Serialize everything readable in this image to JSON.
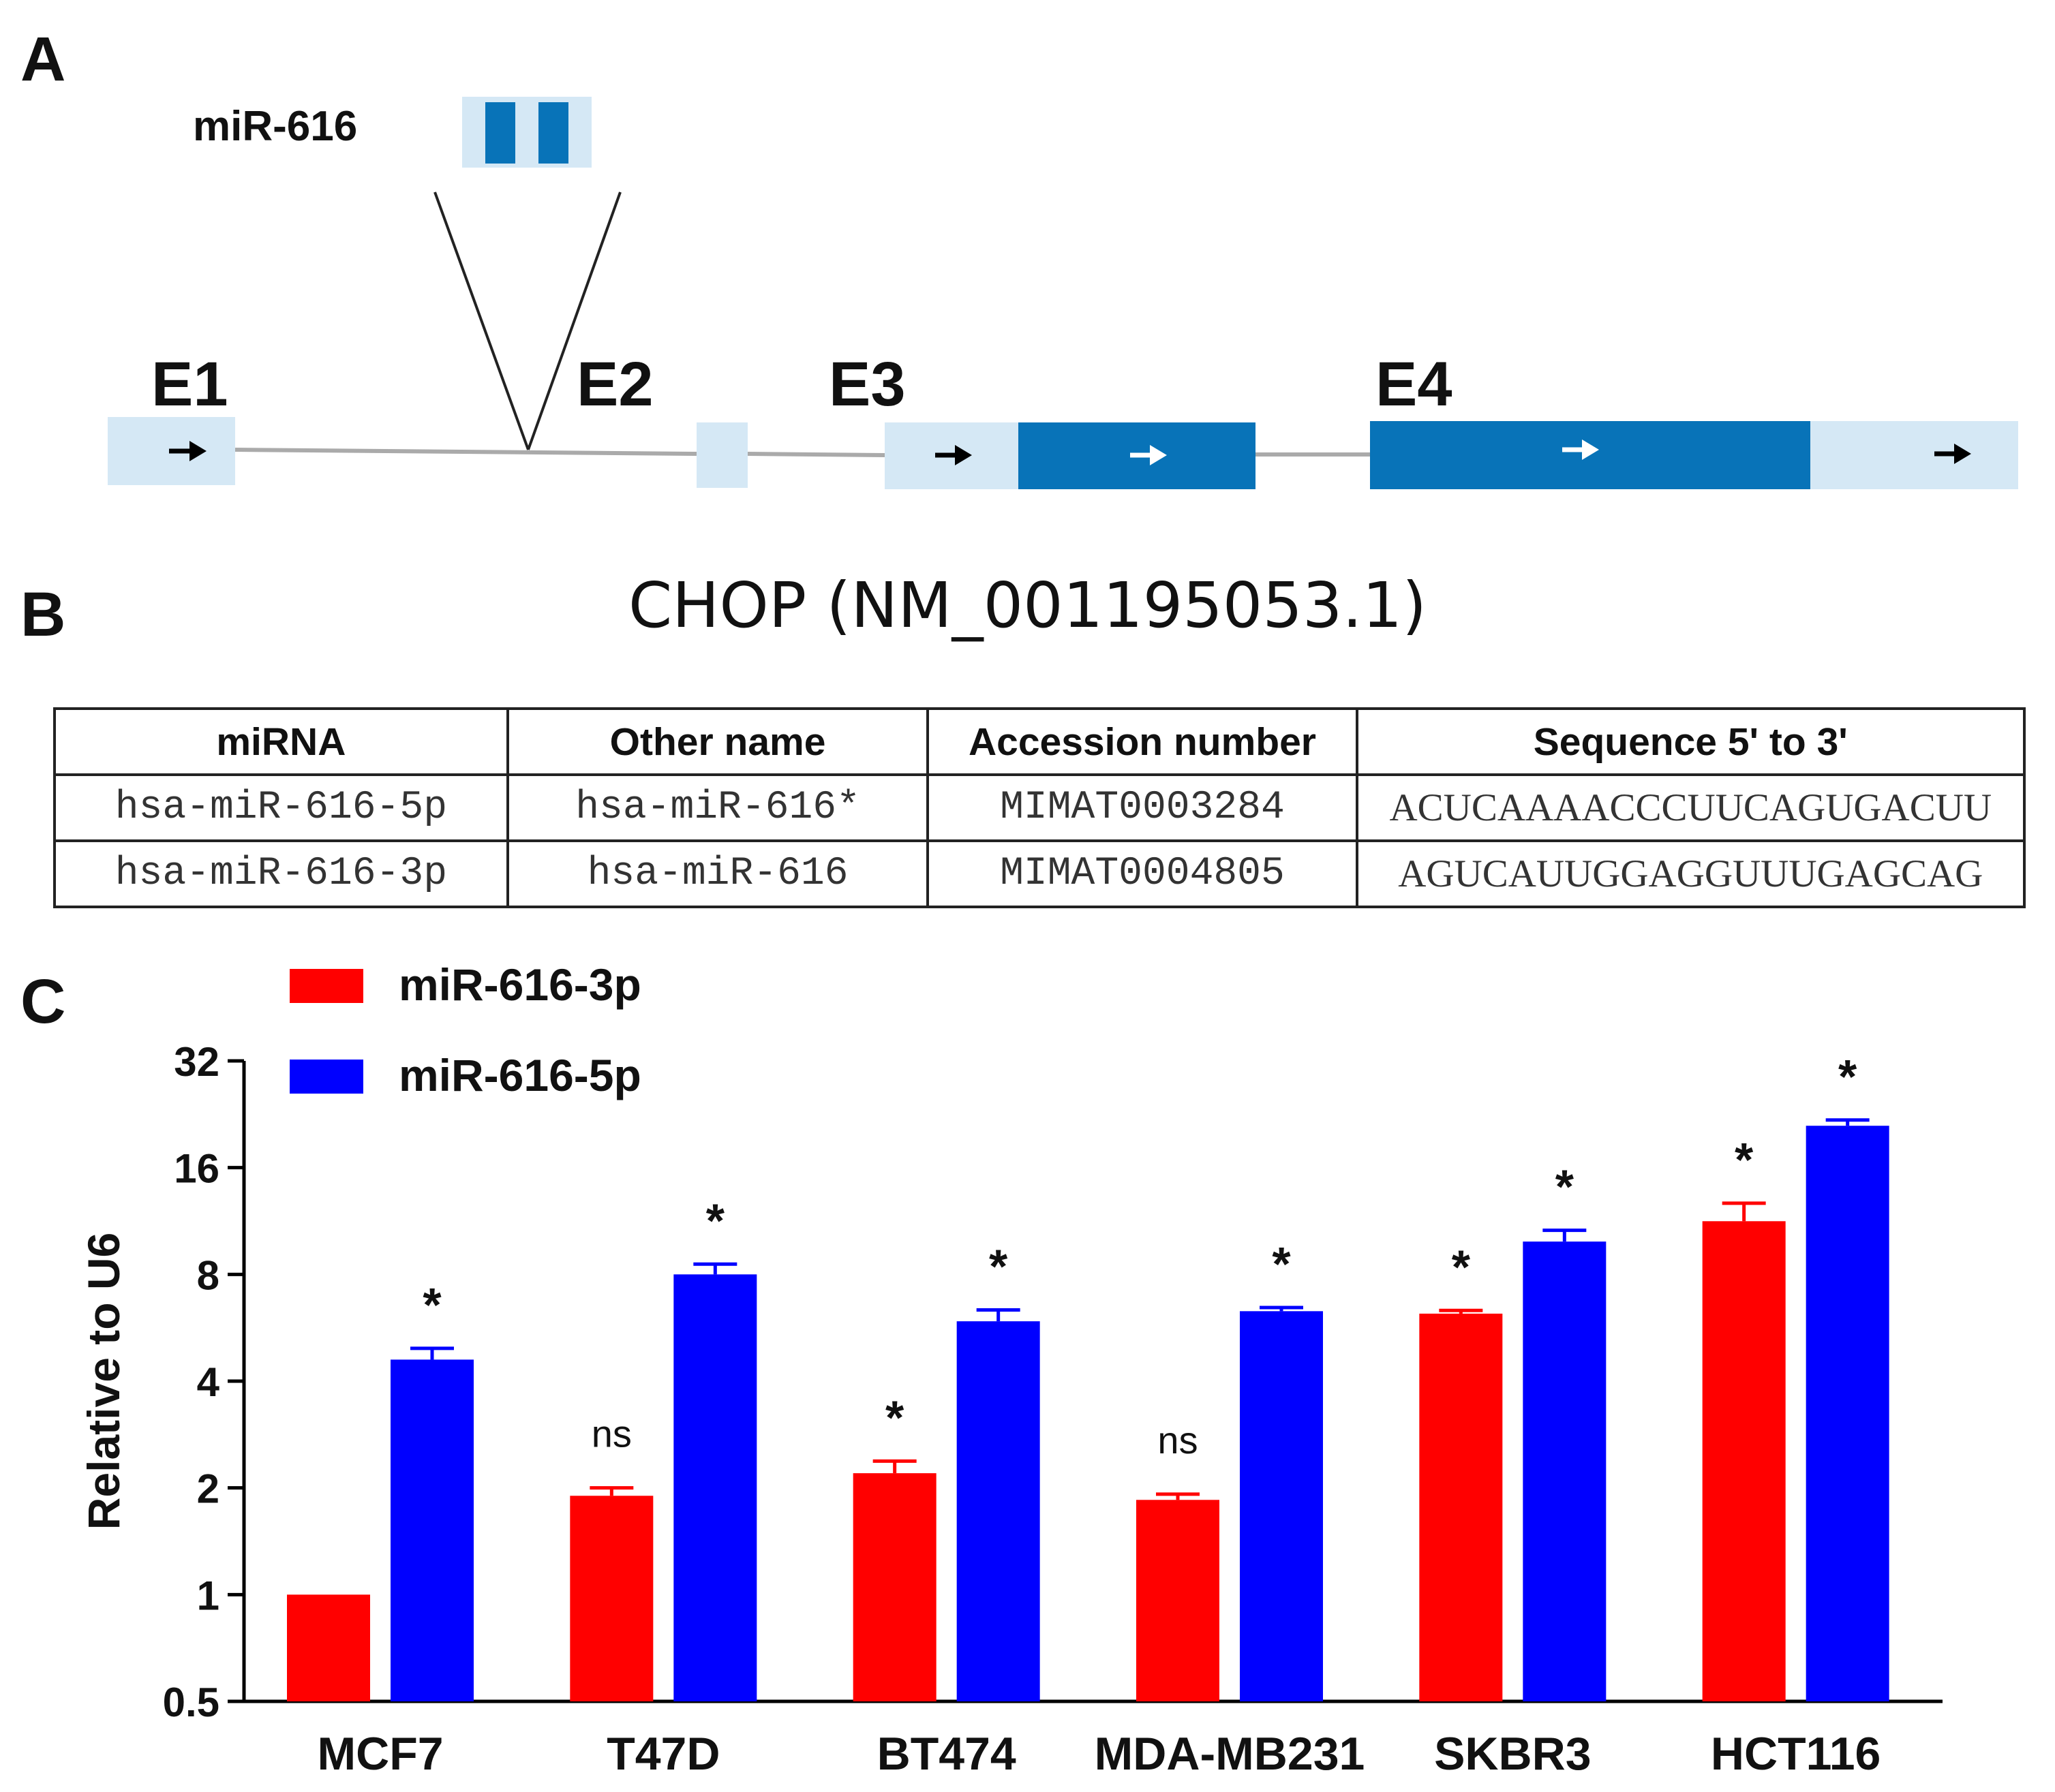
{
  "panels": {
    "a": "A",
    "b": "B",
    "c": "C"
  },
  "gene_diagram": {
    "mirna_label": "miR-616",
    "exons": [
      "E1",
      "E2",
      "E3",
      "E4"
    ]
  },
  "colors": {
    "utr": "#d5e8f5",
    "cds": "#0873b8",
    "intron": "#aaaaaa",
    "series_3p": "#ff0000",
    "series_5p": "#0000ff"
  },
  "table": {
    "title": "CHOP (NM_001195053.1)",
    "headers": [
      "miRNA",
      "Other name",
      "Accession number",
      "Sequence 5' to 3'"
    ],
    "rows": [
      [
        "hsa-miR-616-5p",
        "hsa-miR-616*",
        "MIMAT0003284",
        "ACUCAAAACCCUUCAGUGACUU"
      ],
      [
        "hsa-miR-616-3p",
        "hsa-miR-616",
        "MIMAT0004805",
        "AGUCAUUGGAGGUUUGAGCAG"
      ]
    ]
  },
  "chart_data": {
    "type": "bar",
    "ylabel": "Relative to U6",
    "xlabel": "",
    "yscale": "log2",
    "ylim": [
      0.5,
      32
    ],
    "yticks": [
      "0.5",
      "1",
      "2",
      "4",
      "8",
      "16",
      "32"
    ],
    "categories": [
      "MCF7",
      "T47D",
      "BT474",
      "MDA-MB231",
      "SKBR3",
      "HCT116"
    ],
    "legend_position": "top-left",
    "series": [
      {
        "name": "miR-616-3p",
        "color": "#ff0000",
        "values": [
          1.0,
          1.9,
          2.2,
          1.85,
          6.2,
          11.3
        ],
        "errors": [
          0.0,
          0.1,
          0.18,
          0.07,
          0.13,
          1.4
        ],
        "annotations": [
          "",
          "ns",
          "*",
          "ns",
          "*",
          "*"
        ]
      },
      {
        "name": "miR-616-5p",
        "color": "#0000ff",
        "values": [
          4.6,
          8.0,
          5.9,
          6.3,
          9.9,
          21.0
        ],
        "errors": [
          0.35,
          0.55,
          0.45,
          0.15,
          0.75,
          0.8
        ],
        "annotations": [
          "*",
          "*",
          "*",
          "*",
          "*",
          "*"
        ]
      }
    ]
  }
}
